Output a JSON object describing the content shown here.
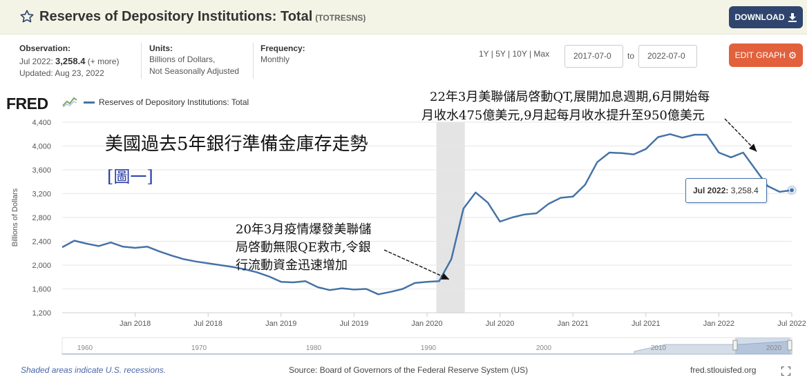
{
  "header": {
    "title": "Reserves of Depository Institutions: Total",
    "series_id": "(TOTRESNS)",
    "download_label": "DOWNLOAD"
  },
  "meta": {
    "observation_label": "Observation:",
    "observation_period": "Jul 2022:",
    "observation_value": "3,258.4",
    "observation_more": "(+ more)",
    "updated": "Updated: Aug 23, 2022",
    "units_label": "Units:",
    "units_line1": "Billions of Dollars,",
    "units_line2": "Not Seasonally Adjusted",
    "frequency_label": "Frequency:",
    "frequency_value": "Monthly"
  },
  "controls": {
    "ranges": "1Y | 5Y | 10Y | Max",
    "start_date": "2017-07-0",
    "to_label": "to",
    "end_date": "2022-07-0",
    "edit_label": "EDIT GRAPH"
  },
  "legend": {
    "logo": "FRED",
    "series_name": "Reserves of Depository Institutions: Total"
  },
  "annotations": {
    "title_zh": "美國過去5年銀行準備金庫存走勢",
    "figure_tag": "[圖一]",
    "qt_line1": "22年3月美聯儲局啓動QT,展開加息週期,6月開始每",
    "qt_line2": "月收水475億美元,9月起每月收水提升至950億美元",
    "qe_line1": "20年3月疫情爆發美聯儲",
    "qe_line2": "局啓動無限QE救市,令銀",
    "qe_line3": "行流動資金迅速增加",
    "tooltip_label": "Jul 2022:",
    "tooltip_value": "3,258.4"
  },
  "footer": {
    "recession_note": "Shaded areas indicate U.S. recessions.",
    "source": "Source: Board of Governors of the Federal Reserve System (US)",
    "url": "fred.stlouisfed.org"
  },
  "colors": {
    "line": "#4572a7",
    "recession": "#e4e4e4",
    "download_button": "#30456d",
    "edit_button": "#e2603c",
    "annotation_blue": "#2b3fa8"
  },
  "chart_data": {
    "type": "line",
    "title": "Reserves of Depository Institutions: Total",
    "ylabel": "Billions of Dollars",
    "xlabel": "",
    "ylim": [
      1200,
      4400
    ],
    "yticks": [
      1200,
      1600,
      2000,
      2400,
      2800,
      3200,
      3600,
      4000,
      4400
    ],
    "ytick_labels": [
      "1,200",
      "1,600",
      "2,000",
      "2,400",
      "2,800",
      "3,200",
      "3,600",
      "4,000",
      "4,400"
    ],
    "xlim": [
      "2017-07",
      "2022-07"
    ],
    "xticks": [
      {
        "date": "2018-01",
        "label": "Jan 2018"
      },
      {
        "date": "2018-07",
        "label": "Jul 2018"
      },
      {
        "date": "2019-01",
        "label": "Jan 2019"
      },
      {
        "date": "2019-07",
        "label": "Jul 2019"
      },
      {
        "date": "2020-01",
        "label": "Jan 2020"
      },
      {
        "date": "2020-07",
        "label": "Jul 2020"
      },
      {
        "date": "2021-01",
        "label": "Jan 2021"
      },
      {
        "date": "2021-07",
        "label": "Jul 2021"
      },
      {
        "date": "2022-01",
        "label": "Jan 2022"
      },
      {
        "date": "2022-07",
        "label": "Jul 2022"
      }
    ],
    "recession": {
      "start": "2020-02",
      "end": "2020-04"
    },
    "grid": true,
    "series": [
      {
        "name": "Reserves of Depository Institutions: Total",
        "x": [
          "2017-07",
          "2017-08",
          "2017-09",
          "2017-10",
          "2017-11",
          "2017-12",
          "2018-01",
          "2018-02",
          "2018-03",
          "2018-04",
          "2018-05",
          "2018-06",
          "2018-07",
          "2018-08",
          "2018-09",
          "2018-10",
          "2018-11",
          "2018-12",
          "2019-01",
          "2019-02",
          "2019-03",
          "2019-04",
          "2019-05",
          "2019-06",
          "2019-07",
          "2019-08",
          "2019-09",
          "2019-10",
          "2019-11",
          "2019-12",
          "2020-01",
          "2020-02",
          "2020-03",
          "2020-04",
          "2020-05",
          "2020-06",
          "2020-07",
          "2020-08",
          "2020-09",
          "2020-10",
          "2020-11",
          "2020-12",
          "2021-01",
          "2021-02",
          "2021-03",
          "2021-04",
          "2021-05",
          "2021-06",
          "2021-07",
          "2021-08",
          "2021-09",
          "2021-10",
          "2021-11",
          "2021-12",
          "2022-01",
          "2022-02",
          "2022-03",
          "2022-04",
          "2022-05",
          "2022-06",
          "2022-07"
        ],
        "values": [
          2300,
          2410,
          2360,
          2320,
          2380,
          2310,
          2290,
          2310,
          2230,
          2160,
          2100,
          2060,
          2030,
          2000,
          1970,
          1930,
          1880,
          1810,
          1720,
          1710,
          1730,
          1630,
          1580,
          1610,
          1590,
          1600,
          1510,
          1550,
          1600,
          1700,
          1720,
          1730,
          2100,
          2950,
          3220,
          3050,
          2730,
          2800,
          2850,
          2870,
          3030,
          3130,
          3150,
          3350,
          3730,
          3890,
          3880,
          3860,
          3950,
          4150,
          4200,
          4140,
          4190,
          4190,
          3890,
          3810,
          3890,
          3610,
          3330,
          3230,
          3258.4
        ]
      }
    ],
    "annotations": [
      {
        "text": "20年3月疫情爆發美聯儲局啓動無限QE救市,令銀行流動資金迅速增加",
        "date": "2020-03"
      },
      {
        "text": "22年3月美聯儲局啓動QT,展開加息週期,6月開始每月收水475億美元,9月起每月收水提升至950億美元",
        "date": "2022-04"
      }
    ]
  },
  "navigator": {
    "labels": [
      "1960",
      "1970",
      "1980",
      "1990",
      "2000",
      "2010",
      "2020"
    ]
  }
}
